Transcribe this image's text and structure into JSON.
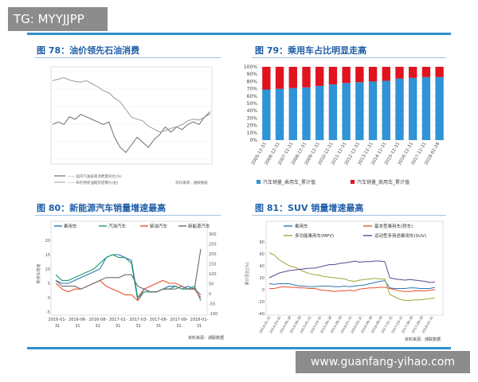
{
  "watermark_top": "TG: MYYJJPP",
  "watermark_bottom": "www.guanfang-yihao.com",
  "chart_data": [
    {
      "type": "line",
      "title": "图 78：油价领先石油消费",
      "legend": [
        "—— 国内汽油表观消费量同比(%)",
        "—— 布伦特原油期货结算价(右)"
      ],
      "series": [
        {
          "name": "国内汽油表观消费量同比",
          "values": [
            3,
            4,
            3,
            6,
            5,
            7,
            6,
            5,
            4,
            3,
            4,
            -2,
            -6,
            -8,
            -5,
            -2,
            -4,
            -6,
            -3,
            -1,
            2,
            0,
            2,
            1,
            3,
            4,
            3,
            6,
            8
          ]
        },
        {
          "name": "布伦特原油期货结算价(右)",
          "values": [
            108,
            110,
            112,
            109,
            107,
            106,
            108,
            104,
            100,
            95,
            92,
            85,
            80,
            70,
            60,
            57,
            55,
            48,
            44,
            40,
            42,
            45,
            47,
            50,
            55,
            57,
            56,
            60,
            64
          ]
        }
      ],
      "source_note": "资料来源：通联数据"
    },
    {
      "type": "bar",
      "stacked": true,
      "title": "图 79：乘用车占比明显走高",
      "categories": [
        "2005-12-31",
        "2006-12-31",
        "2007-12-31",
        "2008-12-31",
        "2009-12-31",
        "2010-12-31",
        "2011-12-31",
        "2012-12-31",
        "2013-12-31",
        "2014-12-31",
        "2015-12-31",
        "2016-12-31",
        "2017-12-31",
        "2018-02-28"
      ],
      "y_ticks": [
        "0%",
        "10%",
        "20%",
        "30%",
        "40%",
        "50%",
        "60%",
        "70%",
        "80%",
        "90%",
        "100%"
      ],
      "ylim": [
        0,
        100
      ],
      "series": [
        {
          "name": "汽车销量_乘用车_累计值",
          "color": "#2f93d6",
          "values": [
            69,
            70,
            71,
            72,
            74,
            76,
            78,
            79,
            80,
            81,
            84,
            85,
            86,
            86
          ]
        },
        {
          "name": "汽车销量_商用车_累计值",
          "color": "#e0131f",
          "values": [
            31,
            30,
            29,
            28,
            26,
            24,
            22,
            21,
            20,
            19,
            16,
            15,
            14,
            14
          ]
        }
      ]
    },
    {
      "type": "line",
      "title": "图 80：新能源汽车销量增速最高",
      "y_label": "乘用车增速",
      "x_ticks": [
        "2016-01-31",
        "2016-06-31",
        "2016-08-31",
        "2017-01-31",
        "2017-03-31",
        "2017-06-31",
        "2017-09-31",
        "2018-01-31"
      ],
      "y_left_ticks": [
        "20",
        "15",
        "10",
        "5",
        "0",
        "-5"
      ],
      "y_right_ticks": [
        "300",
        "250",
        "200",
        "150",
        "100",
        "50",
        "0",
        "-50",
        "-100"
      ],
      "series": [
        {
          "name": "乘用车",
          "color": "#2e74b5",
          "values": [
            6,
            5,
            5,
            6,
            7,
            8,
            9,
            10,
            14,
            15,
            15,
            14,
            13,
            0,
            3,
            2,
            2,
            3,
            4,
            4,
            3,
            4,
            3,
            1
          ]
        },
        {
          "name": "汽油汽车",
          "color": "#1d9c6e",
          "values": [
            8,
            6,
            6,
            7,
            8,
            9,
            10,
            12,
            14,
            15,
            14,
            14,
            12,
            -1,
            2,
            2,
            2,
            3,
            3,
            4,
            3,
            3,
            4,
            -1
          ]
        },
        {
          "name": "柴油汽车",
          "color": "#e8512d",
          "values": [
            5,
            3,
            2,
            3,
            3,
            4,
            5,
            6,
            4,
            3,
            2,
            1,
            1,
            -1,
            3,
            4,
            5,
            6,
            5,
            5,
            4,
            3,
            3,
            0
          ]
        },
        {
          "name": "新能源汽车",
          "color": "#6b6b6b",
          "values": [
            6,
            4,
            4,
            4,
            3,
            4,
            5,
            6,
            7,
            7,
            7,
            8,
            8,
            4,
            3,
            2,
            2,
            3,
            3,
            3,
            4,
            3,
            3,
            17
          ]
        }
      ],
      "source_note": "资料来源：通联数据"
    },
    {
      "type": "line",
      "title": "图 81：SUV 销量增速最高",
      "y_label": "累计同比(%)",
      "x_ticks": [
        "2014-01-31",
        "2014-03-31",
        "2014-06-30",
        "2014-09-30",
        "2015-01-31",
        "2015-03-31",
        "2015-06-30",
        "2015-09-30",
        "2016-01-31",
        "2016-03-31",
        "2016-06-30",
        "2016-09-30",
        "2017-01-31",
        "2017-03-31",
        "2017-06-30",
        "2017-09-30",
        "2018-01-31"
      ],
      "y_ticks": [
        "80",
        "60",
        "40",
        "20",
        "0",
        "-20",
        "-40"
      ],
      "series": [
        {
          "name": "乘用车",
          "color": "#2e74b5",
          "values": [
            10,
            9,
            10,
            10,
            10,
            8,
            6,
            6,
            5,
            5,
            6,
            6,
            6,
            5,
            5,
            6,
            5,
            6,
            7,
            8,
            10,
            12,
            14,
            15,
            3,
            2,
            2,
            2,
            3,
            3,
            2,
            2,
            2,
            4
          ]
        },
        {
          "name": "基本型乘用车(轿车)",
          "color": "#e8512d",
          "values": [
            2,
            2,
            4,
            5,
            4,
            4,
            3,
            3,
            2,
            2,
            0,
            -1,
            -2,
            -3,
            -2,
            -2,
            -1,
            -2,
            1,
            2,
            3,
            3,
            4,
            4,
            2,
            0,
            -2,
            -3,
            -3,
            -2,
            -2,
            -2,
            -1,
            0
          ]
        },
        {
          "name": "多功能乘用车(MPV)",
          "color": "#a1a537",
          "values": [
            62,
            58,
            50,
            45,
            40,
            38,
            34,
            30,
            27,
            25,
            24,
            22,
            21,
            20,
            19,
            18,
            15,
            14,
            16,
            17,
            18,
            19,
            18,
            18,
            -8,
            -12,
            -16,
            -18,
            -18,
            -17,
            -17,
            -16,
            -15,
            -14
          ]
        },
        {
          "name": "运动型多用途乘用车(SUV)",
          "color": "#5b4a8a",
          "values": [
            20,
            24,
            28,
            30,
            32,
            33,
            34,
            35,
            36,
            36,
            38,
            40,
            42,
            42,
            44,
            45,
            46,
            48,
            46,
            47,
            47,
            48,
            48,
            47,
            20,
            18,
            17,
            16,
            17,
            16,
            15,
            14,
            12,
            13
          ]
        }
      ],
      "source_note": "资料来源：通联数据"
    }
  ]
}
